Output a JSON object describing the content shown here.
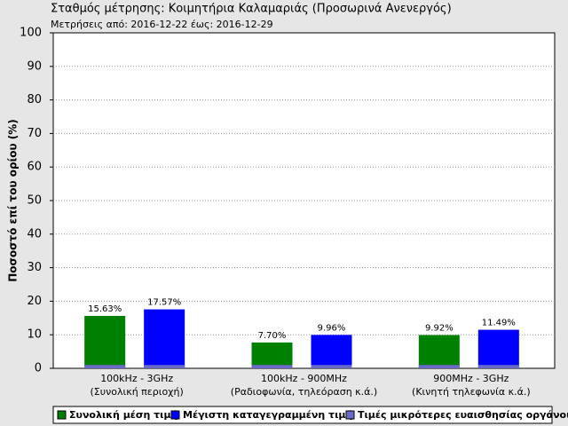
{
  "chart_data": {
    "type": "bar",
    "title": "Σταθμός μέτρησης: Κοιμητήρια Καλαμαριάς (Προσωρινά Ανενεργός)",
    "subtitle": "Μετρήσεις από: 2016-12-22 έως: 2016-12-29",
    "y_label": "Ποσοστό επί του ορίου (%)",
    "categories": [
      [
        "100kHz - 3GHz",
        "(Συνολική περιοχή)"
      ],
      [
        "100kHz - 900MHz",
        "(Ραδιοφωνία, τηλεόραση κ.ά.)"
      ],
      [
        "900MHz - 3GHz",
        "(Κινητή τηλεφωνία κ.ά.)"
      ]
    ],
    "series": [
      {
        "name": "Συνολική μέση τιμή",
        "color": "#008000",
        "values": [
          15.63,
          7.7,
          9.92
        ],
        "value_labels": [
          "15.63%",
          "7.70%",
          "9.92%"
        ]
      },
      {
        "name": "Μέγιστη καταγεγραμμένη τιμή",
        "color": "#0000ff",
        "values": [
          17.57,
          9.96,
          11.49
        ],
        "value_labels": [
          "17.57%",
          "9.96%",
          "11.49%"
        ]
      },
      {
        "name": "Τιμές μικρότερες ευαισθησίας οργάνου",
        "color": "#6a6ac8",
        "values": [
          1,
          1,
          1
        ]
      }
    ],
    "ylim": [
      0,
      100
    ],
    "yticks": [
      0,
      10,
      20,
      30,
      40,
      50,
      60,
      70,
      80,
      90,
      100
    ],
    "grid": true
  }
}
